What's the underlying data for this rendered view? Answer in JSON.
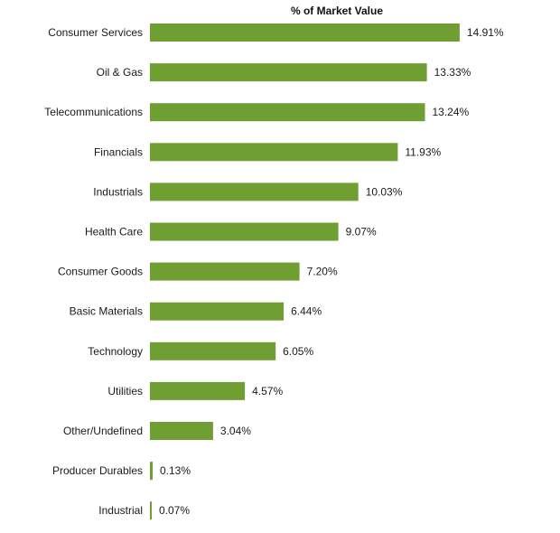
{
  "chart_data": {
    "type": "bar",
    "orientation": "horizontal",
    "title": "% of Market Value",
    "xlabel": "",
    "ylabel": "",
    "categories": [
      "Consumer Services",
      "Oil & Gas",
      "Telecommunications",
      "Financials",
      "Industrials",
      "Health Care",
      "Consumer Goods",
      "Basic Materials",
      "Technology",
      "Utilities",
      "Other/Undefined",
      "Producer Durables",
      "Industrial"
    ],
    "values": [
      14.91,
      13.33,
      13.24,
      11.93,
      10.03,
      9.07,
      7.2,
      6.44,
      6.05,
      4.57,
      3.04,
      0.13,
      0.07
    ],
    "value_labels": [
      "14.91%",
      "13.33%",
      "13.24%",
      "11.93%",
      "10.03%",
      "9.07%",
      "7.20%",
      "6.44%",
      "6.05%",
      "4.57%",
      "3.04%",
      "0.13%",
      "0.07%"
    ],
    "xlim": [
      0,
      15
    ],
    "grid": false,
    "legend": "none",
    "bar_color": "#6f9e33"
  }
}
